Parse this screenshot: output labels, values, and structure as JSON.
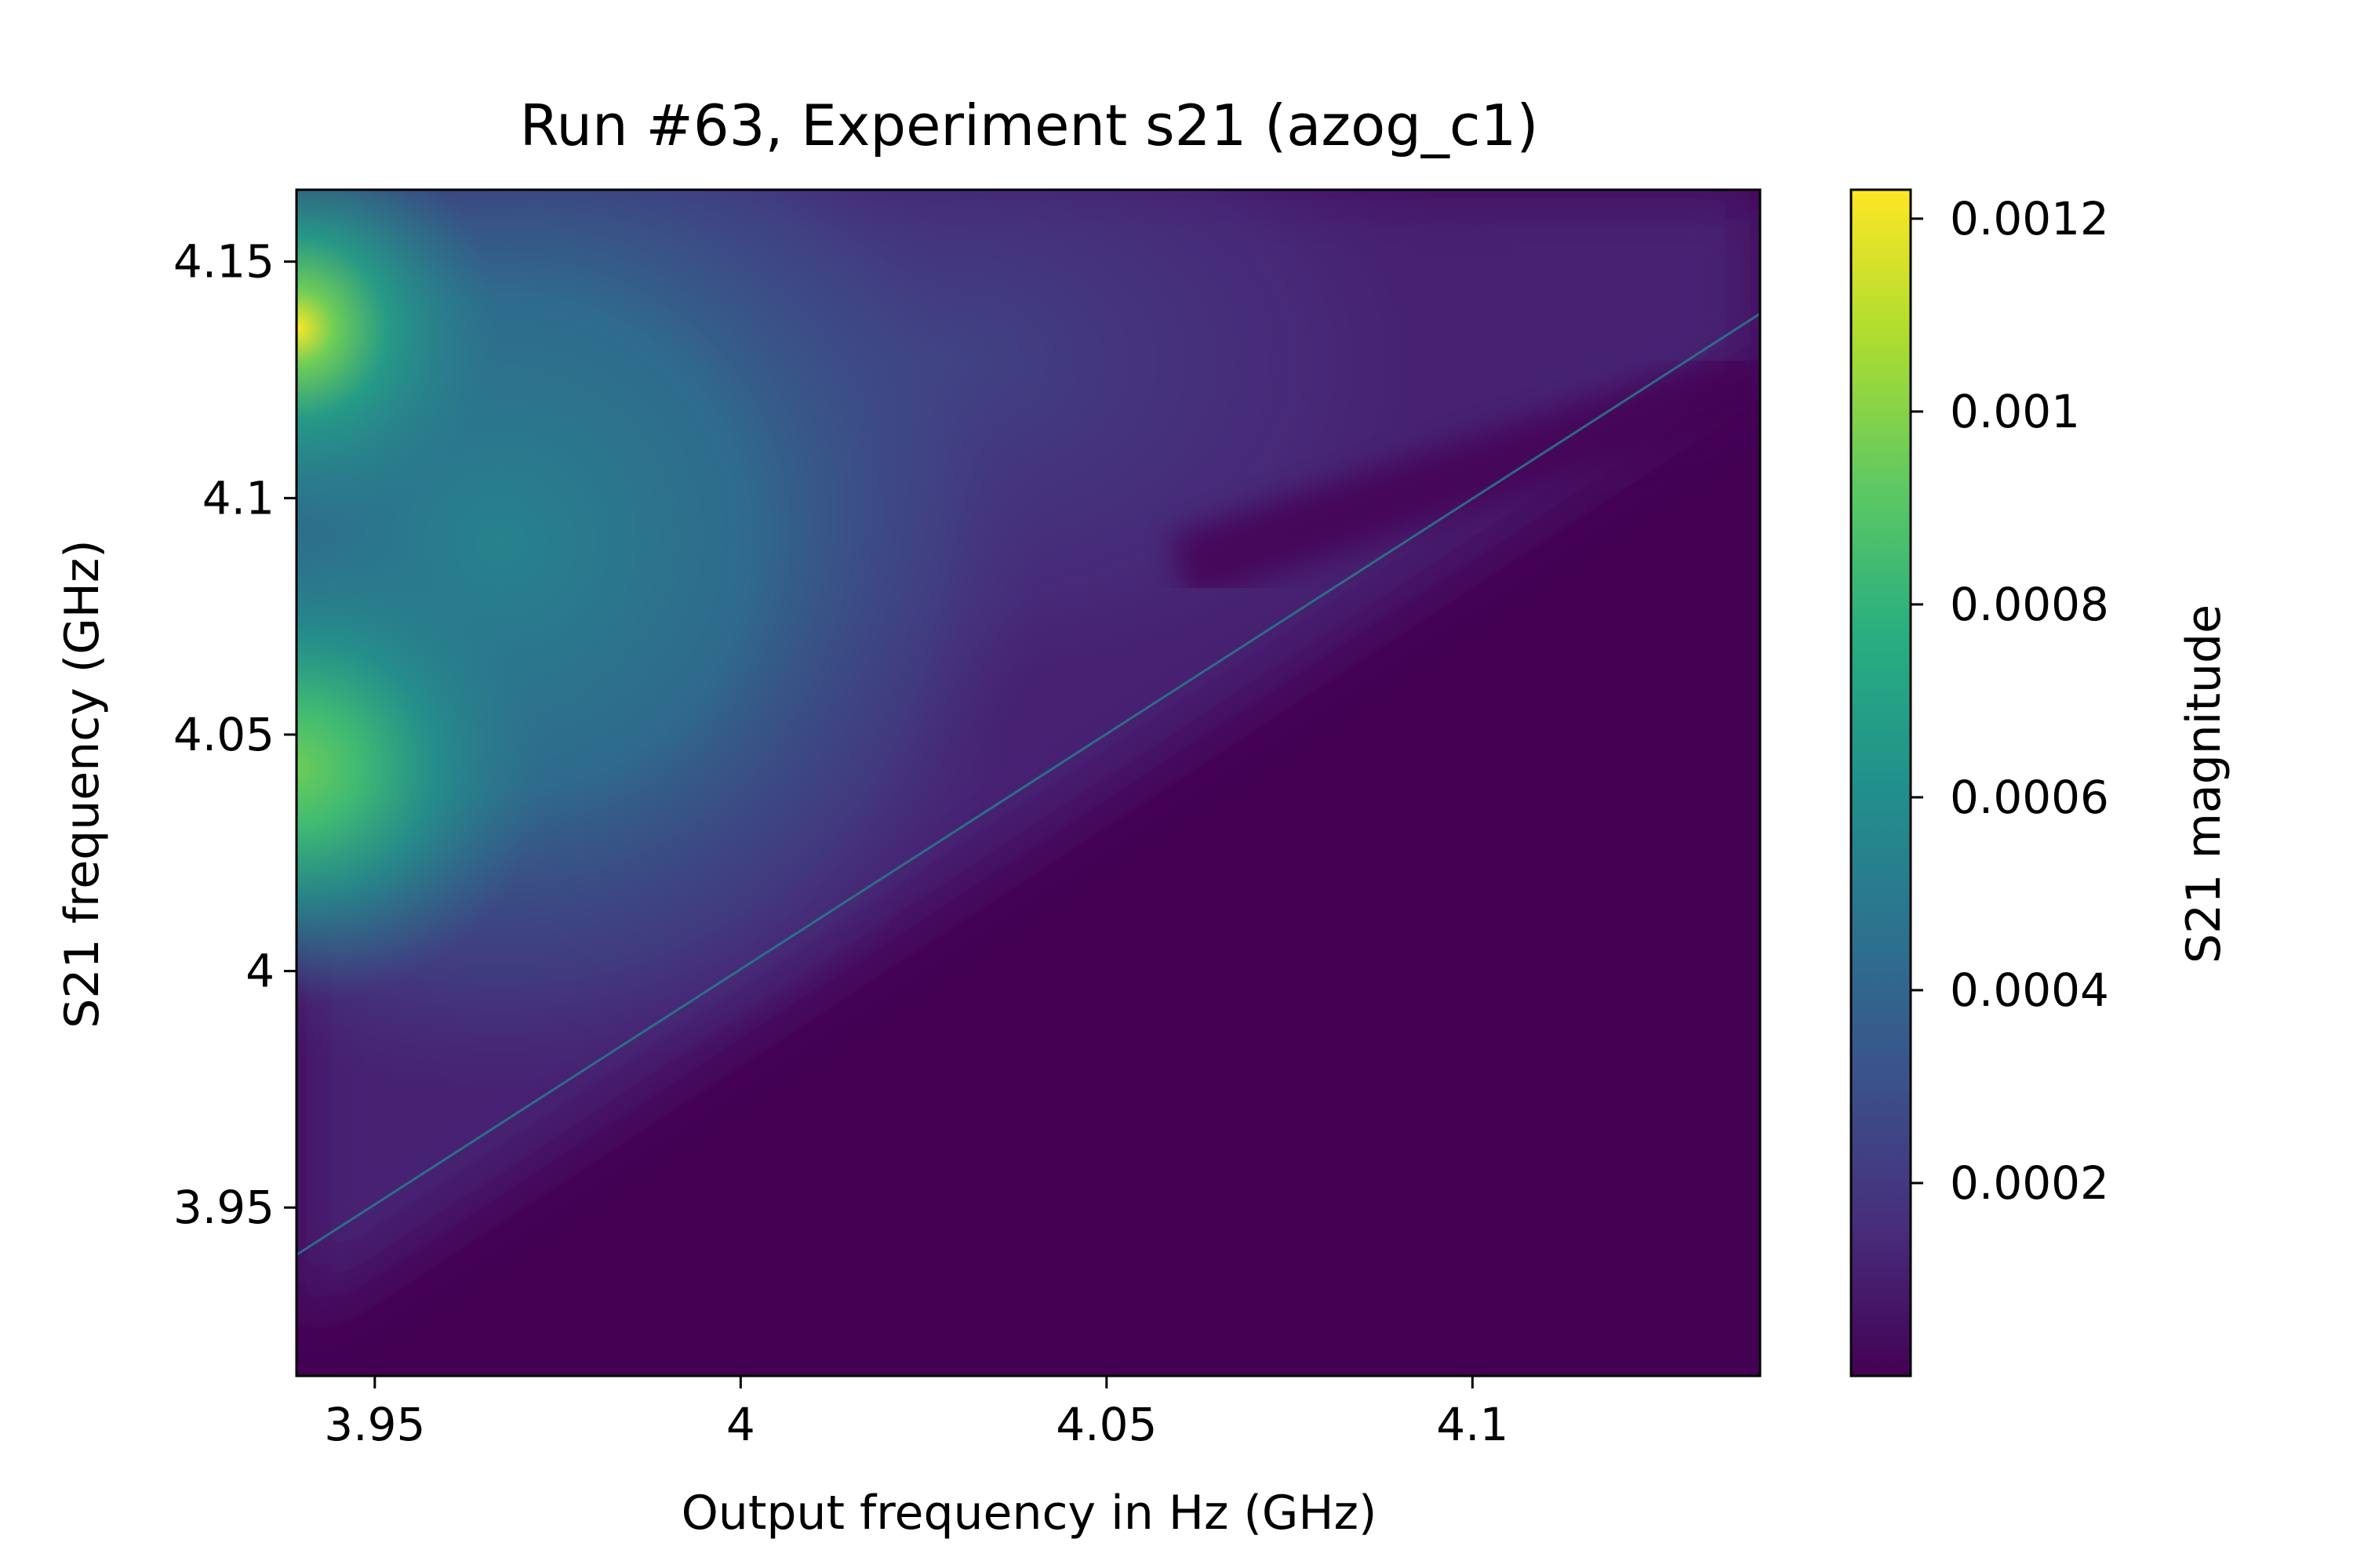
{
  "colors": {
    "viridis": [
      "#440154",
      "#472d7b",
      "#3b528b",
      "#2c728e",
      "#21918c",
      "#28ae80",
      "#5ec962",
      "#addc30",
      "#fde725"
    ],
    "background": "#ffffff",
    "axis": "#000000"
  },
  "chart_data": {
    "type": "heatmap",
    "title": "Run #63, Experiment s21 (azog_c1)",
    "xlabel": "Output frequency in Hz (GHz)",
    "ylabel": "S21 frequency (GHz)",
    "colorbar_label": "S21 magnitude",
    "xlim": [
      3.9393,
      4.1393
    ],
    "ylim": [
      3.9144,
      4.1652
    ],
    "x_ticks": [
      {
        "value": 3.95,
        "label": "3.95"
      },
      {
        "value": 4.0,
        "label": "4"
      },
      {
        "value": 4.05,
        "label": "4.05"
      },
      {
        "value": 4.1,
        "label": "4.1"
      }
    ],
    "y_ticks": [
      {
        "value": 3.95,
        "label": "3.95"
      },
      {
        "value": 4.0,
        "label": "4"
      },
      {
        "value": 4.05,
        "label": "4.05"
      },
      {
        "value": 4.1,
        "label": "4.1"
      },
      {
        "value": 4.15,
        "label": "4.15"
      }
    ],
    "colorbar_range": [
      0.0,
      0.00123
    ],
    "colorbar_ticks": [
      {
        "value": 0.0002,
        "label": "0.0002"
      },
      {
        "value": 0.0004,
        "label": "0.0004"
      },
      {
        "value": 0.0006,
        "label": "0.0006"
      },
      {
        "value": 0.0008,
        "label": "0.0008"
      },
      {
        "value": 0.001,
        "label": "0.001"
      },
      {
        "value": 0.0012,
        "label": "0.0012"
      }
    ],
    "features": {
      "peaks": [
        {
          "x": 3.9393,
          "y": 4.136,
          "value": 0.00123
        },
        {
          "x": 3.9393,
          "y": 4.043,
          "value": 0.00095
        }
      ],
      "diagonal_line": {
        "x_start": 3.9393,
        "y_start": 3.94,
        "x_end": 4.1393,
        "y_end": 4.139,
        "value": 0.0005
      }
    }
  }
}
